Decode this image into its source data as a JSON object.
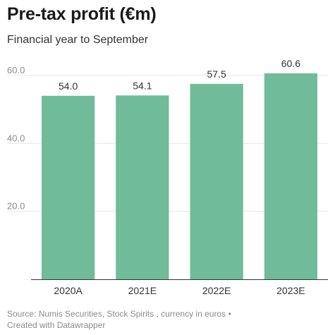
{
  "header": {
    "title": "Pre-tax profit (€m)",
    "subtitle": "Financial year to September"
  },
  "footer": {
    "source_line1": "Source: Numis Securities, Stock Spirits , currency in euros •",
    "source_line2": "Created with Datawrapper"
  },
  "chart_data": {
    "type": "bar",
    "title": "Pre-tax profit (€m)",
    "subtitle": "Financial year to September",
    "categories": [
      "2020A",
      "2021E",
      "2022E",
      "2023E"
    ],
    "values": [
      54.0,
      54.1,
      57.5,
      60.6
    ],
    "value_labels": [
      "54.0",
      "54.1",
      "57.5",
      "60.6"
    ],
    "yticks": [
      20,
      40,
      60
    ],
    "ytick_labels": [
      "20.0",
      "40.0",
      "60.0"
    ],
    "ylim": [
      0,
      60.6
    ],
    "xlabel": "",
    "ylabel": "",
    "grid": true,
    "bar_color": "#70bc9a",
    "grid_color": "#e6e6e6",
    "axis_color": "#333333"
  }
}
